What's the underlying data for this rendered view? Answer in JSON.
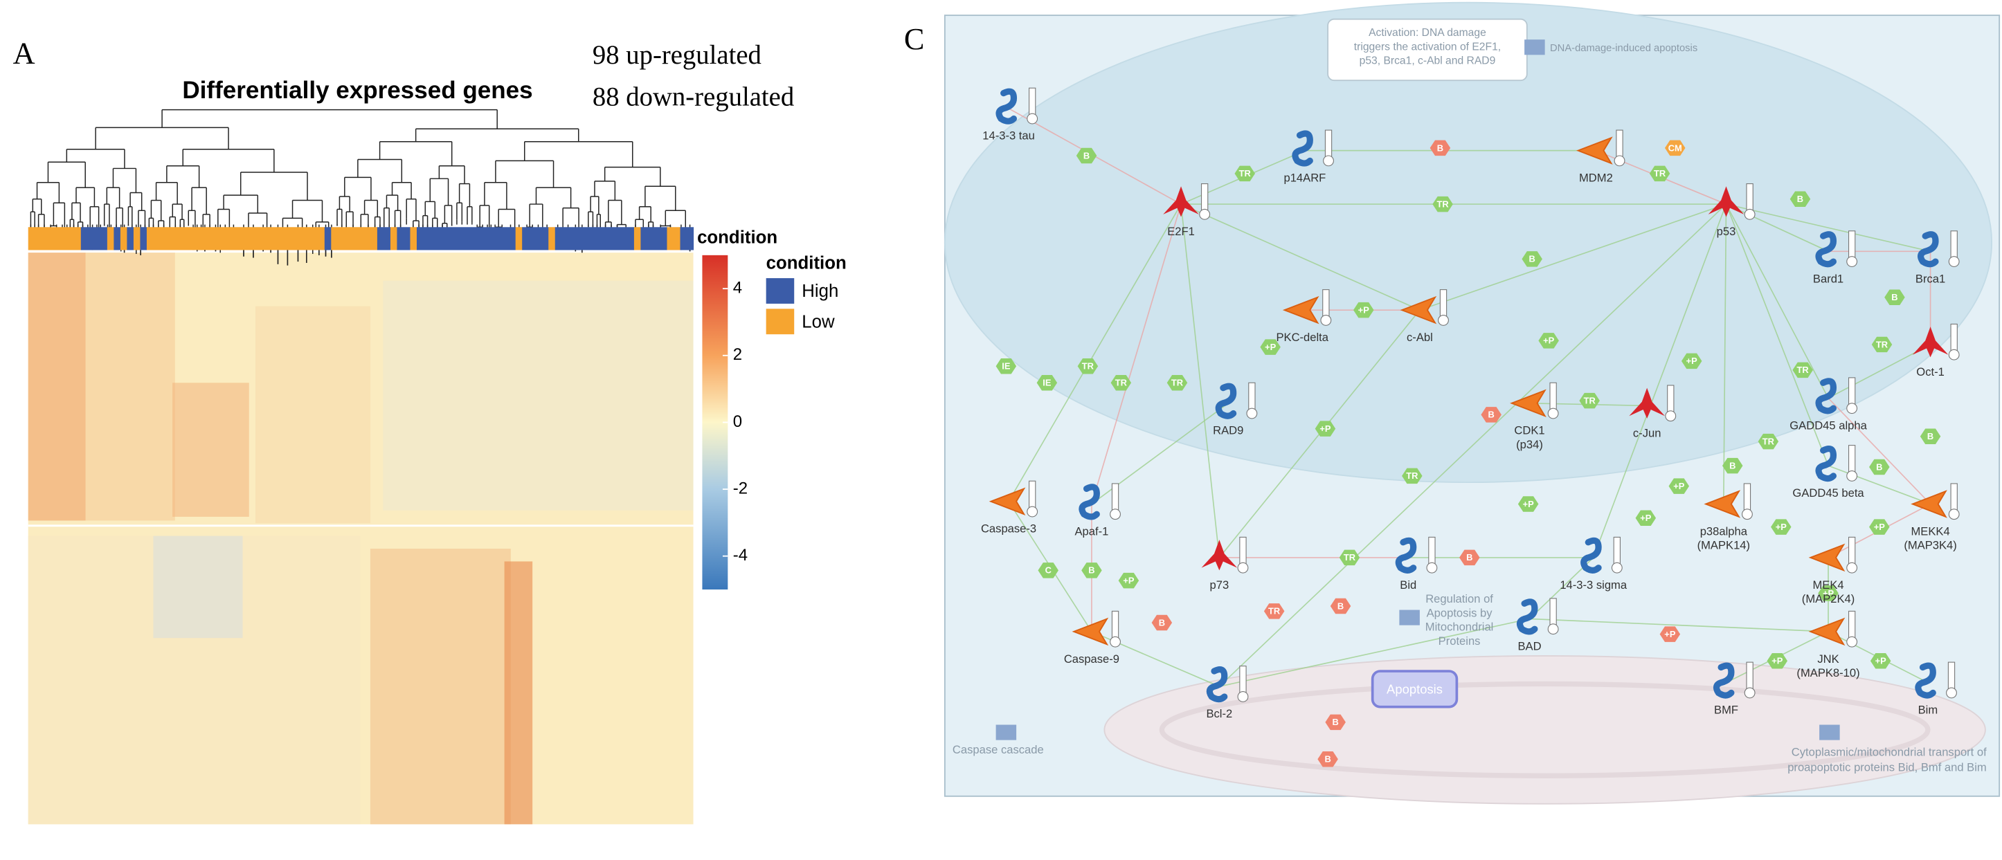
{
  "panel_a": {
    "label": "A",
    "title": "Differentially expressed genes",
    "counts": [
      "98 up-regulated",
      "88 down-regulated"
    ],
    "annotation_label": "condition",
    "legend": {
      "title": "condition",
      "items": [
        {
          "name": "High",
          "color": "#3b5ca8"
        },
        {
          "name": "Low",
          "color": "#f6a530"
        }
      ]
    },
    "colorbar": {
      "lim": [
        -5,
        5
      ],
      "ticks": [
        4,
        2,
        0,
        -2,
        -4
      ]
    },
    "condition_runs": [
      {
        "condition": "Low",
        "columns": 8
      },
      {
        "condition": "High",
        "columns": 4
      },
      {
        "condition": "Low",
        "columns": 1
      },
      {
        "condition": "High",
        "columns": 1
      },
      {
        "condition": "Low",
        "columns": 1
      },
      {
        "condition": "High",
        "columns": 1
      },
      {
        "condition": "Low",
        "columns": 1
      },
      {
        "condition": "High",
        "columns": 1
      },
      {
        "condition": "Low",
        "columns": 5
      },
      {
        "condition": "Low",
        "columns": 22
      },
      {
        "condition": "High",
        "columns": 1
      },
      {
        "condition": "Low",
        "columns": 7
      },
      {
        "condition": "High",
        "columns": 2
      },
      {
        "condition": "Low",
        "columns": 1
      },
      {
        "condition": "High",
        "columns": 2
      },
      {
        "condition": "Low",
        "columns": 1
      },
      {
        "condition": "High",
        "columns": 15
      },
      {
        "condition": "Low",
        "columns": 1
      },
      {
        "condition": "High",
        "columns": 4
      },
      {
        "condition": "Low",
        "columns": 1
      },
      {
        "condition": "High",
        "columns": 12
      },
      {
        "condition": "Low",
        "columns": 1
      },
      {
        "condition": "High",
        "columns": 4
      },
      {
        "condition": "Low",
        "columns": 2
      },
      {
        "condition": "High",
        "columns": 2
      }
    ]
  },
  "panel_c": {
    "label": "C",
    "note": [
      "Activation: DNA damage",
      "triggers the activation of E2F1,",
      "p53, Brca1, c-Abl and RAD9"
    ],
    "legend_item": "DNA-damage-induced apoptosis",
    "nodes": [
      [
        "14-3-3 tau"
      ],
      [
        "E2F1"
      ],
      [
        "p14ARF"
      ],
      [
        "MDM2"
      ],
      [
        "p53"
      ],
      [
        "Bard1"
      ],
      [
        "Brca1"
      ],
      [
        "PKC-delta"
      ],
      [
        "c-Abl"
      ],
      [
        "RAD9"
      ],
      [
        "CDK1",
        "(p34)"
      ],
      [
        "c-Jun"
      ],
      [
        "GADD45 alpha"
      ],
      [
        "GADD45 beta"
      ],
      [
        "Oct-1"
      ],
      [
        "Caspase-3"
      ],
      [
        "Apaf-1"
      ],
      [
        "p38alpha",
        "(MAPK14)"
      ],
      [
        "MEKK4",
        "(MAP3K4)"
      ],
      [
        "p73"
      ],
      [
        "Bid"
      ],
      [
        "14-3-3 sigma"
      ],
      [
        "MEK4",
        "(MAP2K4)"
      ],
      [
        "Caspase-9"
      ],
      [
        "BAD"
      ],
      [
        "JNK",
        "(MAPK8-10)"
      ],
      [
        "Bcl-2"
      ],
      [
        "BMF"
      ],
      [
        "Bim"
      ]
    ],
    "apoptosis": "Apoptosis",
    "regulation": [
      "Regulation of",
      "Apoptosis by",
      "Mitochondrial",
      "Proteins"
    ],
    "caspase_cascade": "Caspase cascade",
    "transport": [
      "Cytoplasmic/mitochondrial transport of",
      "proapoptotic proteins Bid, Bmf and Bim"
    ],
    "edge_labels": [
      "B",
      "TR",
      "B",
      "CM",
      "TR",
      "TR",
      "B",
      "B",
      "+P",
      "+P",
      "IE",
      "IE",
      "TR",
      "TR",
      "TR",
      "TR",
      "B",
      "+P",
      "+P",
      "TR",
      "+P",
      "B",
      "TR",
      "TR",
      "B",
      "B",
      "B",
      "TR",
      "+P",
      "+P",
      "+P",
      "+P",
      "+P",
      "C",
      "B",
      "+P",
      "TR",
      "B",
      "+P",
      "TR",
      "B",
      "B",
      "+P",
      "+P",
      "+P",
      "B",
      "B"
    ]
  }
}
